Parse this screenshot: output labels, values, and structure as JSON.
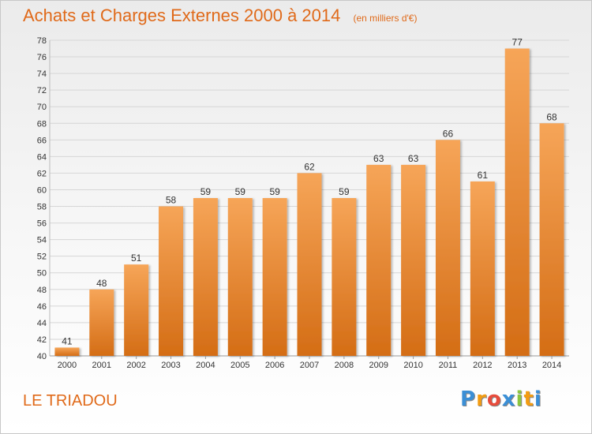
{
  "title": "Achats et Charges Externes 2000 à 2014",
  "subtitle": "(en milliers d'€)",
  "commune": "LE TRIADOU",
  "logo": {
    "text": "Proxiti",
    "letters": [
      "P",
      "r",
      "o",
      "x",
      "i",
      "t",
      "i"
    ],
    "colors": [
      "#3b8fd6",
      "#f39c12",
      "#e74c3c",
      "#3b8fd6",
      "#8cc63f",
      "#f39c12",
      "#3b8fd6"
    ]
  },
  "colors": {
    "bar_top": "#f6a558",
    "bar_bottom": "#d46d15",
    "accent": "#e06a1a",
    "grid": "#d6d6d6",
    "axis_text": "#333333"
  },
  "chart_data": {
    "type": "bar",
    "categories": [
      "2000",
      "2001",
      "2002",
      "2003",
      "2004",
      "2005",
      "2006",
      "2007",
      "2008",
      "2009",
      "2010",
      "2011",
      "2012",
      "2013",
      "2014"
    ],
    "values": [
      41,
      48,
      51,
      58,
      59,
      59,
      59,
      62,
      59,
      63,
      63,
      66,
      61,
      77,
      68
    ],
    "title": "Achats et Charges Externes 2000 à 2014",
    "subtitle": "(en milliers d'€)",
    "xlabel": "",
    "ylabel": "",
    "ylim": [
      40,
      78
    ],
    "yticks": [
      40,
      42,
      44,
      46,
      48,
      50,
      52,
      54,
      56,
      58,
      60,
      62,
      64,
      66,
      68,
      70,
      72,
      74,
      76,
      78
    ],
    "grid": true,
    "legend": "none"
  }
}
